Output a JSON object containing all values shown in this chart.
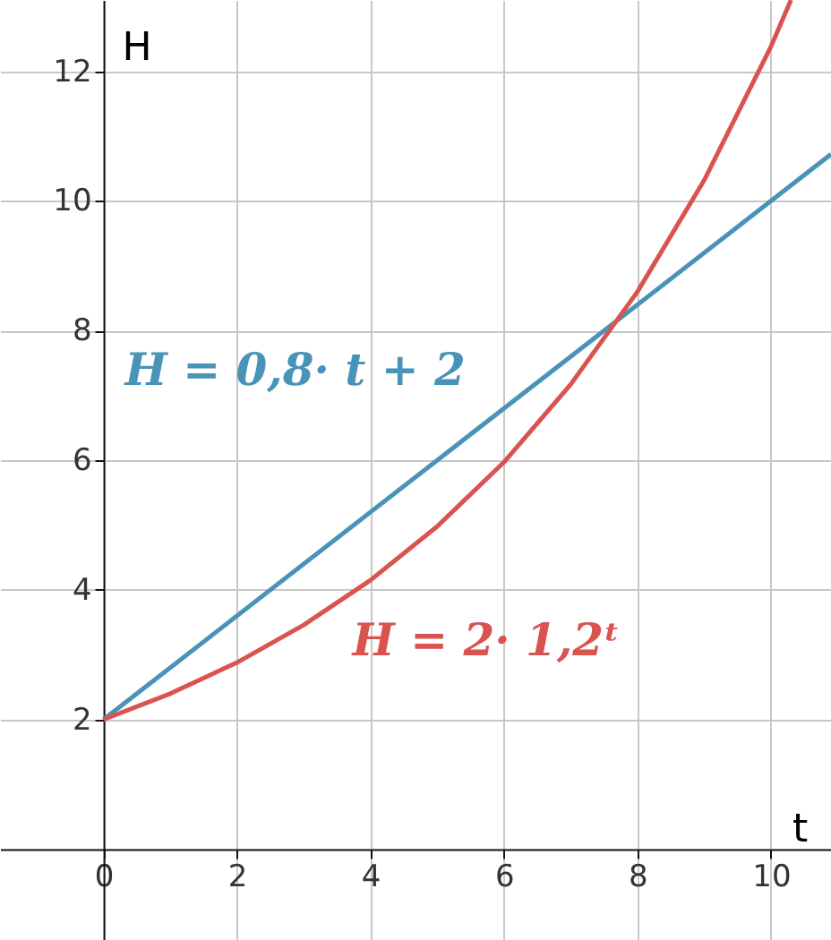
{
  "chart_data": {
    "type": "line",
    "xlabel": "t",
    "ylabel": "H",
    "xlim": [
      -1.55,
      10.9
    ],
    "ylim": [
      -1.4,
      13.1
    ],
    "xticks": [
      0,
      2,
      4,
      6,
      8,
      10
    ],
    "yticks": [
      2,
      4,
      6,
      8,
      10,
      12
    ],
    "grid": true,
    "marker": "none",
    "line_style": "solid",
    "series": [
      {
        "name": "H = 0,8· t + 2",
        "color": "#4a93b8",
        "x": [
          0,
          10.9
        ],
        "values": [
          2,
          10.72
        ]
      },
      {
        "name": "H = 2· 1,2ᵗ",
        "color": "#d9534f",
        "x": [
          0,
          1,
          2,
          3,
          4,
          5,
          6,
          7,
          8,
          9,
          10,
          10.3
        ],
        "values": [
          2,
          2.4,
          2.88,
          3.46,
          4.15,
          4.98,
          5.97,
          7.17,
          8.6,
          10.32,
          12.38,
          13.1
        ]
      }
    ]
  }
}
